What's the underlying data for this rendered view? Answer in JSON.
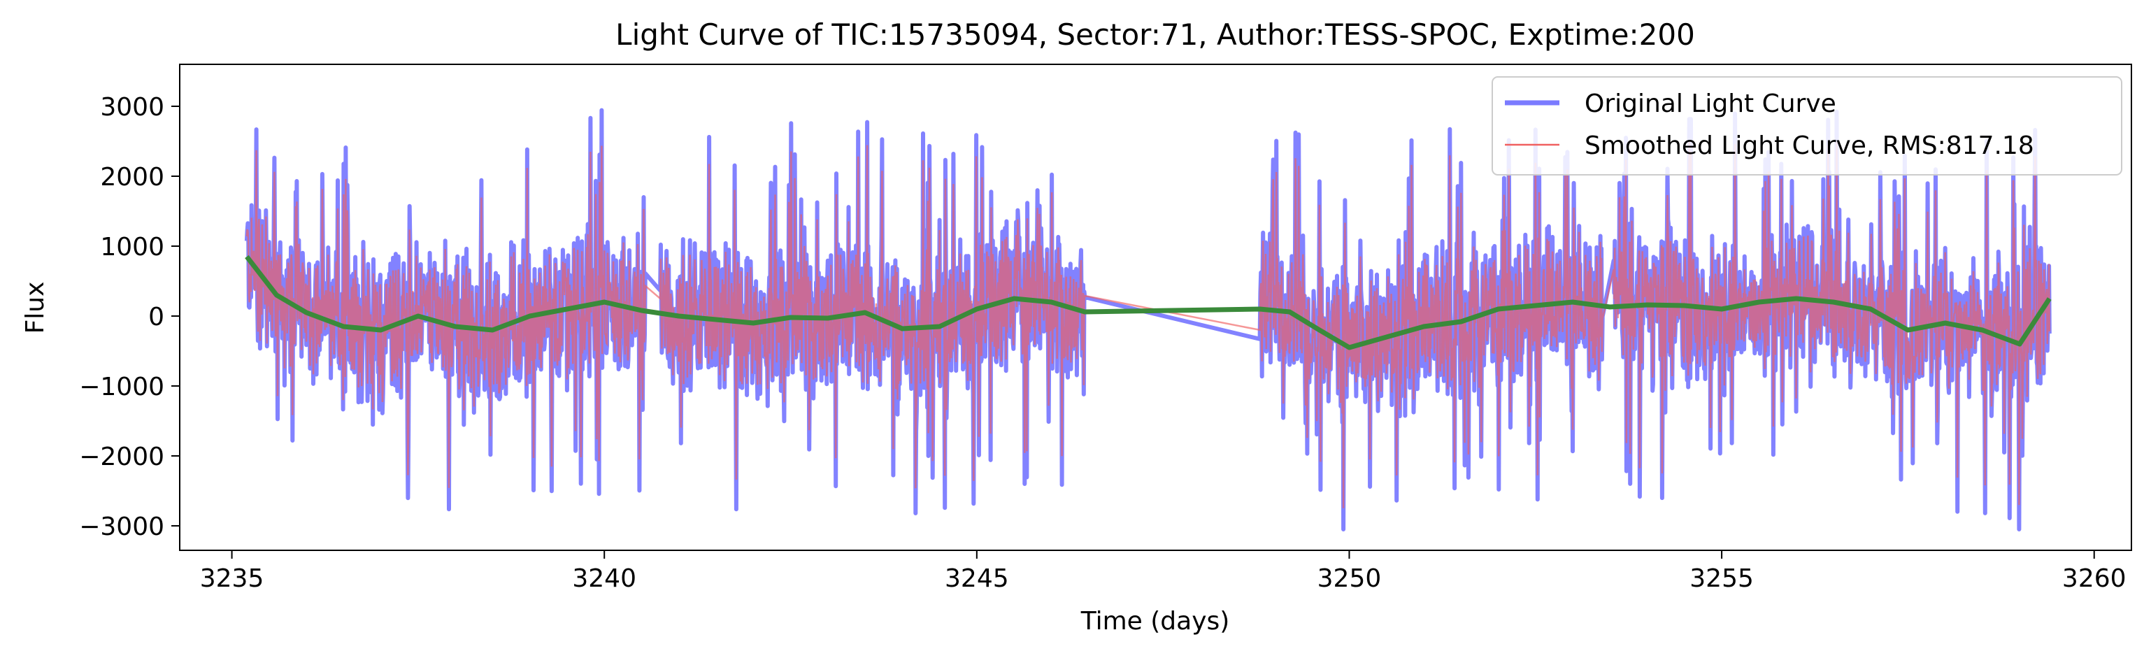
{
  "chart_data": {
    "type": "line",
    "title": "Light Curve of TIC:15735094, Sector:71, Author:TESS-SPOC, Exptime:200",
    "xlabel": "Time (days)",
    "ylabel": "Flux",
    "xlim": [
      3234.3,
      3260.5
    ],
    "ylim": [
      -3350,
      3600
    ],
    "xticks": [
      3235,
      3240,
      3245,
      3250,
      3255,
      3260
    ],
    "yticks": [
      -3000,
      -2000,
      -1000,
      0,
      1000,
      2000,
      3000
    ],
    "grid": false,
    "legend_position": "top-right",
    "data_segments": [
      [
        3235.2,
        3240.55
      ],
      [
        3240.75,
        3246.45
      ],
      [
        3248.8,
        3253.4
      ],
      [
        3253.55,
        3259.4
      ]
    ],
    "noise": {
      "typical_amplitude": 900,
      "spike_max": 3200,
      "spike_min": -3050
    },
    "series": [
      {
        "name": "Original Light Curve",
        "style": "thick-line",
        "color": "#7b7bff",
        "summary": "noisy flux, about -2500 to 3000, around the trend"
      },
      {
        "name": "Smoothed Light Curve, RMS:817.18",
        "style": "thin-line",
        "color": "#f06060",
        "summary": "closely overlaps the original light curve"
      },
      {
        "name": "",
        "style": "trend",
        "color": "#3a8a3a",
        "x": [
          3235.2,
          3235.6,
          3236.0,
          3236.5,
          3237.0,
          3237.5,
          3238.0,
          3238.5,
          3239.0,
          3239.5,
          3240.0,
          3240.5,
          3241.0,
          3241.5,
          3242.0,
          3242.5,
          3243.0,
          3243.5,
          3244.0,
          3244.5,
          3245.0,
          3245.5,
          3246.0,
          3246.45,
          3248.8,
          3249.2,
          3249.6,
          3250.0,
          3250.5,
          3251.0,
          3251.5,
          3252.0,
          3252.5,
          3253.0,
          3253.5,
          3254.0,
          3254.5,
          3255.0,
          3255.5,
          3256.0,
          3256.5,
          3257.0,
          3257.5,
          3258.0,
          3258.5,
          3259.0,
          3259.4
        ],
        "y": [
          850,
          300,
          50,
          -150,
          -200,
          0,
          -150,
          -200,
          0,
          100,
          200,
          80,
          0,
          -50,
          -100,
          -20,
          -30,
          50,
          -180,
          -150,
          100,
          250,
          200,
          60,
          100,
          60,
          -200,
          -450,
          -300,
          -150,
          -80,
          100,
          150,
          200,
          130,
          160,
          150,
          100,
          200,
          250,
          200,
          100,
          -200,
          -100,
          -200,
          -400,
          250
        ]
      }
    ]
  }
}
